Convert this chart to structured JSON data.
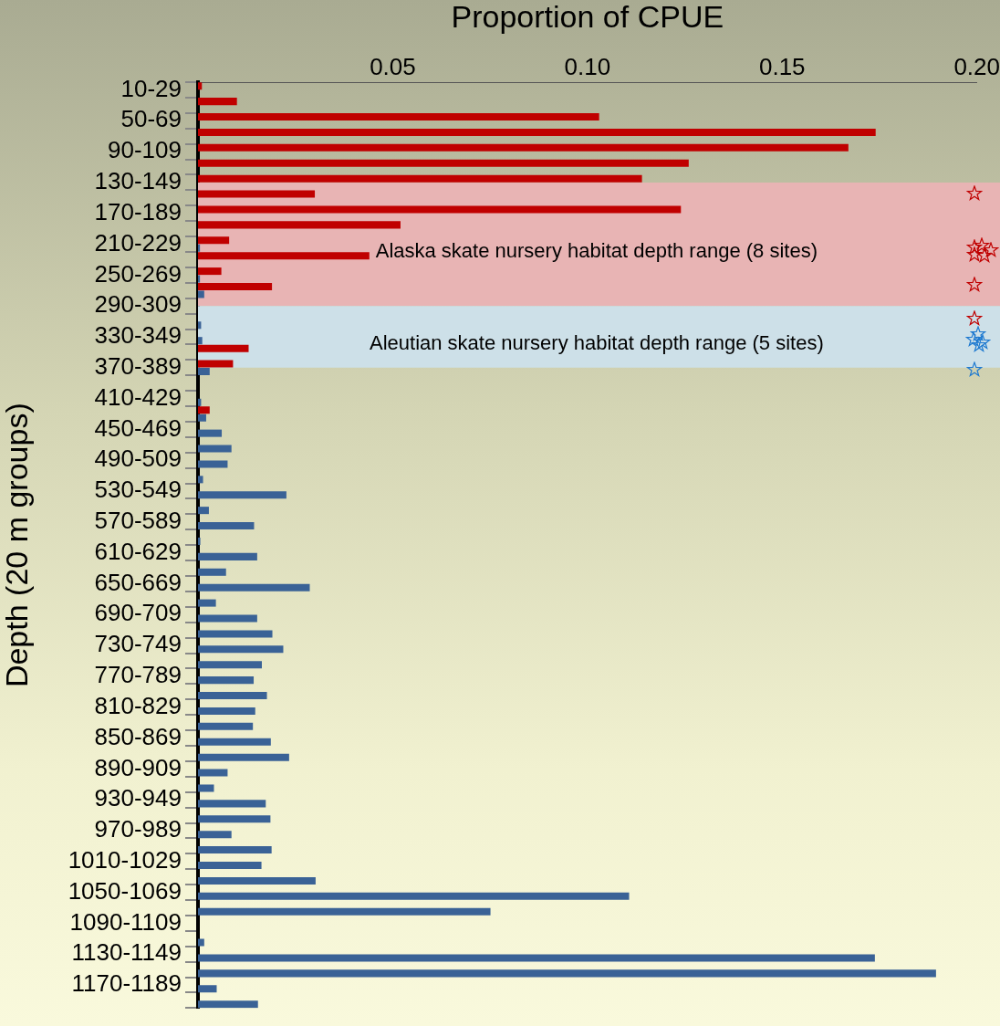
{
  "chart_data": {
    "type": "bar",
    "orientation": "horizontal",
    "xlabel": "Proportion of CPUE",
    "ylabel": "Depth (20 m groups)",
    "categories": [
      "10-29",
      null,
      "50-69",
      null,
      "90-109",
      null,
      "130-149",
      null,
      "170-189",
      null,
      "210-229",
      null,
      "250-269",
      null,
      "290-309",
      null,
      "330-349",
      null,
      "370-389",
      null,
      "410-429",
      null,
      "450-469",
      null,
      "490-509",
      null,
      "530-549",
      null,
      "570-589",
      null,
      "610-629",
      null,
      "650-669",
      null,
      "690-709",
      null,
      "730-749",
      null,
      "770-789",
      null,
      "810-829",
      null,
      "850-869",
      null,
      "890-909",
      null,
      "930-949",
      null,
      "970-989",
      null,
      "1010-1029",
      null,
      "1050-1069",
      null,
      "1090-1109",
      null,
      "1130-1149",
      null,
      "1170-1189",
      null
    ],
    "series": [
      {
        "color": "#c00000",
        "values": [
          0.001,
          0.01,
          0.103,
          0.174,
          0.167,
          0.126,
          0.114,
          0.03,
          0.124,
          0.052,
          0.008,
          0.044,
          0.006,
          0.019,
          null,
          null,
          null,
          0.013,
          0.009,
          null,
          null,
          0.003,
          null,
          null,
          null,
          null,
          null,
          null,
          null,
          null,
          null,
          null,
          null,
          null,
          null,
          null,
          null,
          null,
          null,
          null,
          null,
          null,
          null,
          null,
          null,
          null,
          null,
          null,
          null,
          null,
          null,
          null,
          null,
          null,
          null,
          null,
          null,
          null,
          null,
          null
        ]
      },
      {
        "color": "#3a6296",
        "values": [
          null,
          null,
          null,
          null,
          null,
          null,
          null,
          null,
          null,
          null,
          0.0005,
          null,
          0.0005,
          0.0016,
          null,
          0.0008,
          0.0011,
          null,
          0.003,
          null,
          0.0008,
          0.0021,
          0.0061,
          0.0086,
          0.0076,
          0.0013,
          0.0227,
          0.0028,
          0.0144,
          0.0006,
          0.0152,
          0.0072,
          0.0287,
          0.0046,
          0.0152,
          0.0191,
          0.0219,
          0.0164,
          0.0143,
          0.0177,
          0.0147,
          0.0141,
          0.0187,
          0.0234,
          0.0076,
          0.0041,
          0.0174,
          0.0186,
          0.0086,
          0.0189,
          0.0163,
          0.0302,
          0.1107,
          0.0751,
          null,
          0.0016,
          0.1738,
          0.1895,
          0.0048,
          0.0154
        ]
      }
    ],
    "xlim": [
      0,
      0.2
    ],
    "xticks": [
      0.05,
      {
        "value": 0.1,
        "label": "0.10"
      },
      0.15,
      {
        "value": 0.2,
        "label": "0.20"
      }
    ],
    "grid": false,
    "bands": [
      {
        "axis": "y",
        "from": "130-149",
        "to": "290-309",
        "label": "Alaska skate nursery habitat depth range (8 sites)",
        "color": "#e8b4b4"
      },
      {
        "axis": "y",
        "from": "290-309",
        "to": "370-389",
        "label": "Aleutian skate nursery habitat depth range (5 sites)",
        "color": "#cde0e8"
      }
    ]
  }
}
